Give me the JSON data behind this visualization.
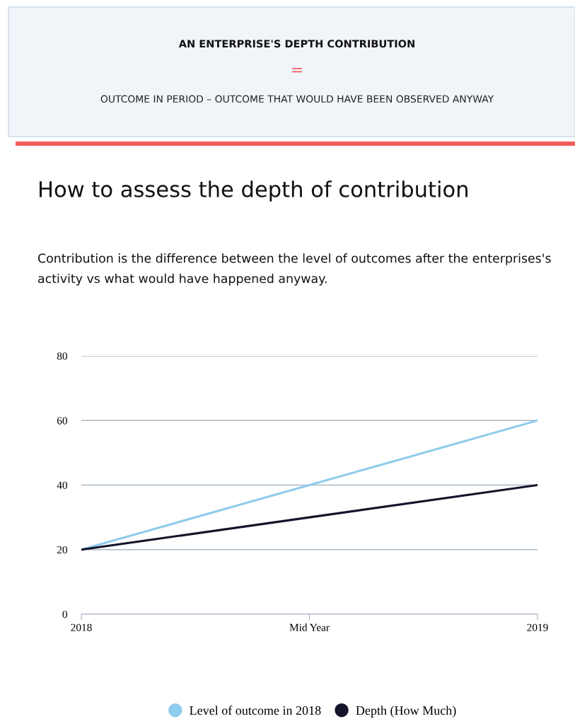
{
  "chart_data": {
    "type": "line",
    "title": "How to assess the depth of contribution",
    "subtitle": "Contribution is the difference between the level of outcomes after the enterprises's activity vs what would have happened anyway.",
    "annotations": [
      "AN ENTERPRISE'S DEPTH CONTRIBUTION",
      "=",
      "OUTCOME IN PERIOD – OUTCOME THAT WOULD HAVE BEEN OBSERVED ANYWAY"
    ],
    "categories": [
      "2018",
      "Mid Year",
      "2019"
    ],
    "series": [
      {
        "name": "Level of outcome in 2018",
        "color": "#8ecbec",
        "values": [
          20,
          40,
          60
        ]
      },
      {
        "name": "Depth (How Much)",
        "color": "#14142b",
        "values": [
          20,
          30,
          40
        ]
      }
    ],
    "ylim": [
      0,
      80
    ],
    "yticks": [
      0,
      20,
      40,
      60,
      80
    ],
    "grid": "y",
    "legend": "bottom",
    "marker": "none",
    "line_style": "solid"
  }
}
